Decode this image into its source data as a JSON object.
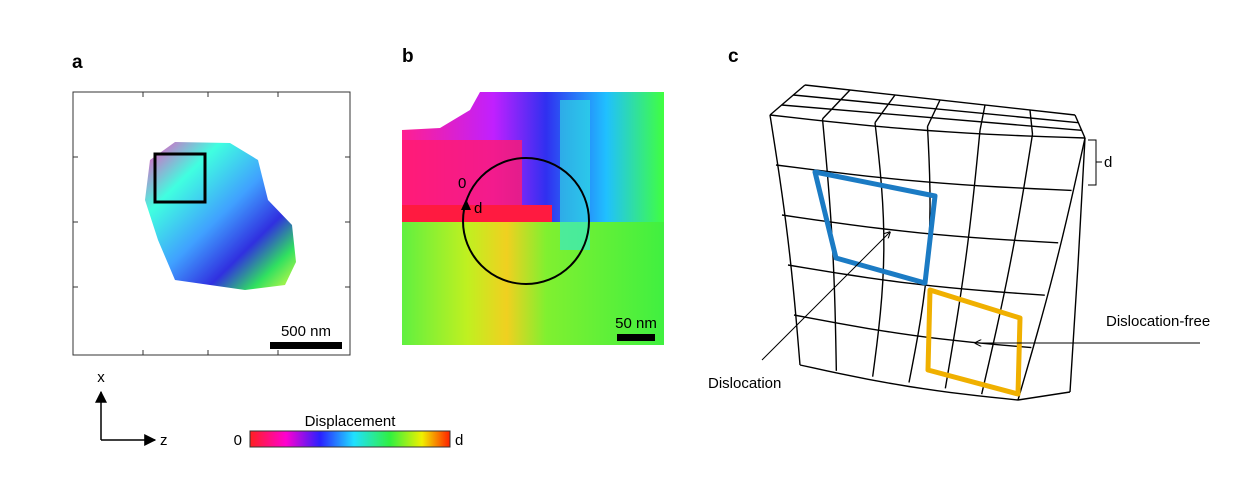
{
  "panels": [
    {
      "label": "a",
      "scale_bar": "500 nm",
      "axes": {
        "vertical": "x",
        "horizontal": "z"
      },
      "colorbar": {
        "title": "Displacement",
        "min": "0",
        "max": "d"
      }
    },
    {
      "label": "b",
      "scale_bar": "50 nm",
      "circuit_start": "0",
      "circuit_end": "d"
    },
    {
      "label": "c",
      "spacing": "d",
      "annotations": [
        "Dislocation",
        "Dislocation-free"
      ]
    }
  ]
}
